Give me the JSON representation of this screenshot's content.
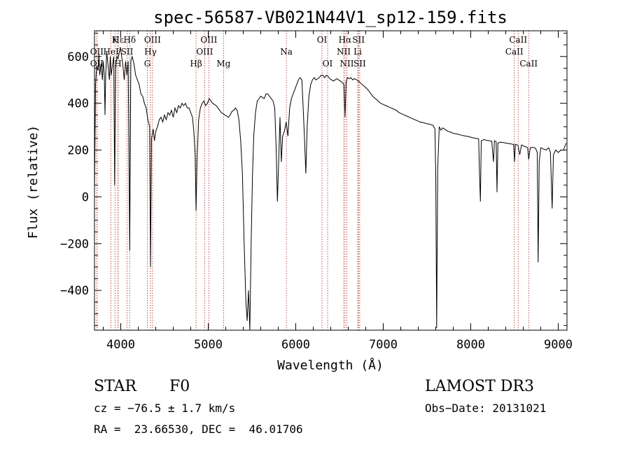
{
  "chart_data": {
    "type": "line",
    "title": "spec-56587-VB021N44V1_sp12-159.fits",
    "xlabel": "Wavelength (Å)",
    "ylabel": "Flux (relative)",
    "xlim": [
      3700,
      9100
    ],
    "ylim": [
      -570,
      710
    ],
    "x_ticks": [
      4000,
      5000,
      6000,
      7000,
      8000,
      9000
    ],
    "y_ticks": [
      -400,
      -200,
      0,
      200,
      400,
      600
    ],
    "grid": false,
    "series_color": "#000000",
    "line_marker_color": "#b22222",
    "spectrum": [
      [
        3700,
        30
      ],
      [
        3712,
        480
      ],
      [
        3725,
        560
      ],
      [
        3740,
        540
      ],
      [
        3750,
        610
      ],
      [
        3760,
        520
      ],
      [
        3775,
        570
      ],
      [
        3790,
        500
      ],
      [
        3800,
        580
      ],
      [
        3812,
        520
      ],
      [
        3820,
        350
      ],
      [
        3828,
        520
      ],
      [
        3840,
        620
      ],
      [
        3855,
        560
      ],
      [
        3870,
        500
      ],
      [
        3880,
        600
      ],
      [
        3890,
        520
      ],
      [
        3905,
        560
      ],
      [
        3920,
        600
      ],
      [
        3930,
        50
      ],
      [
        3942,
        560
      ],
      [
        3955,
        600
      ],
      [
        3968,
        590
      ],
      [
        3980,
        610
      ],
      [
        3995,
        640
      ],
      [
        4010,
        600
      ],
      [
        4025,
        560
      ],
      [
        4040,
        500
      ],
      [
        4055,
        580
      ],
      [
        4070,
        520
      ],
      [
        4085,
        580
      ],
      [
        4102,
        -230
      ],
      [
        4115,
        580
      ],
      [
        4130,
        600
      ],
      [
        4150,
        570
      ],
      [
        4170,
        520
      ],
      [
        4190,
        500
      ],
      [
        4210,
        480
      ],
      [
        4230,
        440
      ],
      [
        4250,
        430
      ],
      [
        4270,
        400
      ],
      [
        4290,
        380
      ],
      [
        4310,
        330
      ],
      [
        4330,
        300
      ],
      [
        4340,
        -300
      ],
      [
        4352,
        250
      ],
      [
        4370,
        290
      ],
      [
        4385,
        240
      ],
      [
        4400,
        280
      ],
      [
        4420,
        300
      ],
      [
        4440,
        330
      ],
      [
        4460,
        340
      ],
      [
        4480,
        320
      ],
      [
        4500,
        350
      ],
      [
        4520,
        330
      ],
      [
        4540,
        360
      ],
      [
        4560,
        350
      ],
      [
        4580,
        370
      ],
      [
        4600,
        340
      ],
      [
        4620,
        380
      ],
      [
        4640,
        360
      ],
      [
        4660,
        390
      ],
      [
        4680,
        380
      ],
      [
        4700,
        400
      ],
      [
        4720,
        390
      ],
      [
        4740,
        400
      ],
      [
        4760,
        380
      ],
      [
        4780,
        380
      ],
      [
        4800,
        360
      ],
      [
        4820,
        340
      ],
      [
        4835,
        280
      ],
      [
        4850,
        180
      ],
      [
        4861,
        -60
      ],
      [
        4872,
        160
      ],
      [
        4890,
        330
      ],
      [
        4910,
        380
      ],
      [
        4930,
        400
      ],
      [
        4950,
        410
      ],
      [
        4970,
        390
      ],
      [
        4990,
        400
      ],
      [
        5010,
        420
      ],
      [
        5030,
        410
      ],
      [
        5050,
        400
      ],
      [
        5070,
        395
      ],
      [
        5090,
        390
      ],
      [
        5110,
        380
      ],
      [
        5130,
        370
      ],
      [
        5150,
        360
      ],
      [
        5170,
        355
      ],
      [
        5190,
        350
      ],
      [
        5210,
        345
      ],
      [
        5230,
        340
      ],
      [
        5250,
        350
      ],
      [
        5270,
        365
      ],
      [
        5290,
        370
      ],
      [
        5310,
        380
      ],
      [
        5330,
        370
      ],
      [
        5350,
        330
      ],
      [
        5370,
        240
      ],
      [
        5390,
        100
      ],
      [
        5410,
        -200
      ],
      [
        5430,
        -450
      ],
      [
        5445,
        -530
      ],
      [
        5460,
        -400
      ],
      [
        5475,
        -570
      ],
      [
        5490,
        -200
      ],
      [
        5505,
        80
      ],
      [
        5520,
        260
      ],
      [
        5540,
        360
      ],
      [
        5560,
        410
      ],
      [
        5580,
        420
      ],
      [
        5600,
        430
      ],
      [
        5620,
        425
      ],
      [
        5640,
        420
      ],
      [
        5660,
        440
      ],
      [
        5680,
        440
      ],
      [
        5700,
        430
      ],
      [
        5720,
        420
      ],
      [
        5740,
        410
      ],
      [
        5760,
        380
      ],
      [
        5775,
        220
      ],
      [
        5790,
        -20
      ],
      [
        5805,
        150
      ],
      [
        5820,
        340
      ],
      [
        5835,
        150
      ],
      [
        5850,
        260
      ],
      [
        5870,
        280
      ],
      [
        5890,
        320
      ],
      [
        5910,
        260
      ],
      [
        5930,
        380
      ],
      [
        5950,
        420
      ],
      [
        5970,
        440
      ],
      [
        5990,
        460
      ],
      [
        6010,
        480
      ],
      [
        6030,
        500
      ],
      [
        6050,
        510
      ],
      [
        6070,
        500
      ],
      [
        6085,
        380
      ],
      [
        6100,
        250
      ],
      [
        6115,
        100
      ],
      [
        6130,
        300
      ],
      [
        6150,
        430
      ],
      [
        6170,
        480
      ],
      [
        6190,
        500
      ],
      [
        6210,
        510
      ],
      [
        6230,
        500
      ],
      [
        6250,
        505
      ],
      [
        6270,
        510
      ],
      [
        6290,
        520
      ],
      [
        6310,
        520
      ],
      [
        6330,
        510
      ],
      [
        6350,
        520
      ],
      [
        6370,
        515
      ],
      [
        6390,
        505
      ],
      [
        6410,
        500
      ],
      [
        6430,
        495
      ],
      [
        6450,
        500
      ],
      [
        6470,
        505
      ],
      [
        6490,
        500
      ],
      [
        6510,
        495
      ],
      [
        6530,
        490
      ],
      [
        6550,
        480
      ],
      [
        6563,
        340
      ],
      [
        6575,
        490
      ],
      [
        6590,
        510
      ],
      [
        6610,
        505
      ],
      [
        6630,
        510
      ],
      [
        6650,
        500
      ],
      [
        6670,
        505
      ],
      [
        6700,
        500
      ],
      [
        6730,
        490
      ],
      [
        6760,
        480
      ],
      [
        6790,
        470
      ],
      [
        6820,
        460
      ],
      [
        6850,
        445
      ],
      [
        6880,
        430
      ],
      [
        6910,
        420
      ],
      [
        6940,
        410
      ],
      [
        6970,
        400
      ],
      [
        7000,
        395
      ],
      [
        7030,
        390
      ],
      [
        7060,
        385
      ],
      [
        7090,
        380
      ],
      [
        7120,
        375
      ],
      [
        7150,
        370
      ],
      [
        7180,
        360
      ],
      [
        7210,
        355
      ],
      [
        7240,
        350
      ],
      [
        7270,
        345
      ],
      [
        7300,
        340
      ],
      [
        7330,
        335
      ],
      [
        7360,
        330
      ],
      [
        7390,
        325
      ],
      [
        7420,
        320
      ],
      [
        7450,
        318
      ],
      [
        7480,
        315
      ],
      [
        7510,
        312
      ],
      [
        7540,
        310
      ],
      [
        7570,
        305
      ],
      [
        7590,
        290
      ],
      [
        7600,
        100
      ],
      [
        7610,
        -560
      ],
      [
        7622,
        120
      ],
      [
        7640,
        300
      ],
      [
        7660,
        285
      ],
      [
        7680,
        295
      ],
      [
        7700,
        290
      ],
      [
        7720,
        285
      ],
      [
        7740,
        280
      ],
      [
        7760,
        278
      ],
      [
        7780,
        275
      ],
      [
        7800,
        272
      ],
      [
        7820,
        270
      ],
      [
        7850,
        268
      ],
      [
        7880,
        265
      ],
      [
        7910,
        262
      ],
      [
        7940,
        260
      ],
      [
        7970,
        258
      ],
      [
        8000,
        255
      ],
      [
        8030,
        252
      ],
      [
        8060,
        250
      ],
      [
        8090,
        248
      ],
      [
        8100,
        100
      ],
      [
        8110,
        -20
      ],
      [
        8120,
        240
      ],
      [
        8150,
        245
      ],
      [
        8180,
        242
      ],
      [
        8210,
        240
      ],
      [
        8240,
        238
      ],
      [
        8260,
        150
      ],
      [
        8270,
        240
      ],
      [
        8290,
        236
      ],
      [
        8300,
        20
      ],
      [
        8310,
        230
      ],
      [
        8340,
        234
      ],
      [
        8370,
        232
      ],
      [
        8400,
        230
      ],
      [
        8430,
        228
      ],
      [
        8460,
        226
      ],
      [
        8490,
        224
      ],
      [
        8500,
        150
      ],
      [
        8510,
        225
      ],
      [
        8540,
        220
      ],
      [
        8560,
        180
      ],
      [
        8580,
        222
      ],
      [
        8620,
        215
      ],
      [
        8650,
        210
      ],
      [
        8662,
        160
      ],
      [
        8680,
        210
      ],
      [
        8710,
        212
      ],
      [
        8740,
        208
      ],
      [
        8760,
        190
      ],
      [
        8770,
        -280
      ],
      [
        8782,
        150
      ],
      [
        8800,
        210
      ],
      [
        8830,
        205
      ],
      [
        8860,
        200
      ],
      [
        8890,
        210
      ],
      [
        8910,
        190
      ],
      [
        8930,
        -50
      ],
      [
        8945,
        180
      ],
      [
        8970,
        200
      ],
      [
        9000,
        190
      ],
      [
        9030,
        200
      ],
      [
        9060,
        200
      ],
      [
        9090,
        230
      ]
    ],
    "spectral_lines": [
      {
        "label": "Hε",
        "wavelength": 3970,
        "row": 0
      },
      {
        "label": "K",
        "wavelength": 3934,
        "row": 0
      },
      {
        "label": "Hδ",
        "wavelength": 4102,
        "row": 0
      },
      {
        "label": "OIII",
        "wavelength": 4363,
        "row": 0
      },
      {
        "label": "OIII",
        "wavelength": 5007,
        "row": 0
      },
      {
        "label": "OI",
        "wavelength": 6300,
        "row": 0
      },
      {
        "label": "Hα",
        "wavelength": 6563,
        "row": 0
      },
      {
        "label": "SII",
        "wavelength": 6717,
        "row": 0
      },
      {
        "label": "CaII",
        "wavelength": 8542,
        "row": 0
      },
      {
        "label": "OII",
        "wavelength": 3727,
        "row": 1
      },
      {
        "label": "HeI",
        "wavelength": 3889,
        "row": 1
      },
      {
        "label": "SII",
        "wavelength": 4072,
        "row": 1
      },
      {
        "label": "Hγ",
        "wavelength": 4340,
        "row": 1
      },
      {
        "label": "OIII",
        "wavelength": 4959,
        "row": 1
      },
      {
        "label": "Na",
        "wavelength": 5893,
        "row": 1
      },
      {
        "label": "NII",
        "wavelength": 6548,
        "row": 1
      },
      {
        "label": "Li",
        "wavelength": 6708,
        "row": 1
      },
      {
        "label": "CaII",
        "wavelength": 8498,
        "row": 1
      },
      {
        "label": "OII",
        "wavelength": 3727,
        "row": 2
      },
      {
        "label": "H",
        "wavelength": 3968,
        "row": 2
      },
      {
        "label": "G",
        "wavelength": 4304,
        "row": 2
      },
      {
        "label": "Hβ",
        "wavelength": 4861,
        "row": 2
      },
      {
        "label": "Mg",
        "wavelength": 5175,
        "row": 2
      },
      {
        "label": "OI",
        "wavelength": 6364,
        "row": 2
      },
      {
        "label": "NII",
        "wavelength": 6584,
        "row": 2
      },
      {
        "label": "SII",
        "wavelength": 6731,
        "row": 2
      },
      {
        "label": "CaII",
        "wavelength": 8662,
        "row": 2
      }
    ]
  },
  "info": {
    "object_class": "STAR",
    "subclass": "F0",
    "survey": "LAMOST DR3",
    "cz": "cz = −76.5 ± 1.7 km/s",
    "obs_date": "Obs−Date: 20131021",
    "coords": "RA =  23.66530, DEC =  46.01706"
  }
}
